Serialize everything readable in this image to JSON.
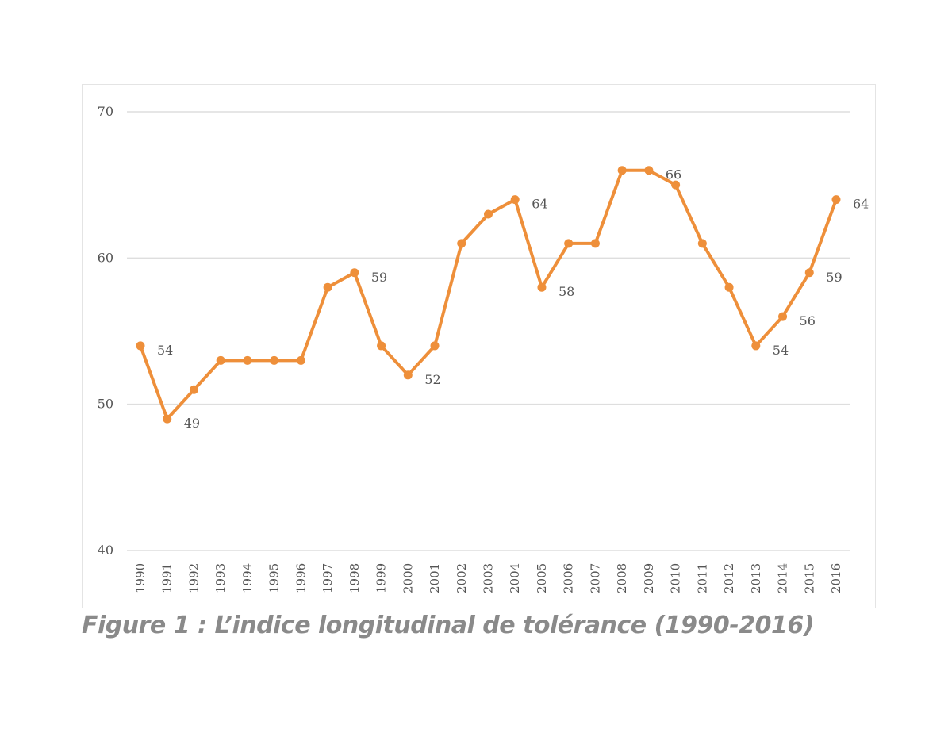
{
  "caption": "Figure 1 : L’indice longitudinal de tolérance (1990-2016)",
  "colors": {
    "line": "#ee8f3a",
    "grid": "#dedede",
    "text": "#555555"
  },
  "chart_data": {
    "type": "line",
    "title": "",
    "xlabel": "",
    "ylabel": "",
    "ylim": [
      40,
      70
    ],
    "yticks": [
      40,
      50,
      60,
      70
    ],
    "grid": true,
    "x": [
      "1990",
      "1991",
      "1992",
      "1993",
      "1994",
      "1995",
      "1996",
      "1997",
      "1998",
      "1999",
      "2000",
      "2001",
      "2002",
      "2003",
      "2004",
      "2005",
      "2006",
      "2007",
      "2008",
      "2009",
      "2010",
      "2011",
      "2012",
      "2013",
      "2014",
      "2015",
      "2016"
    ],
    "series": [
      {
        "values": [
          54,
          49,
          51,
          53,
          53,
          53,
          53,
          58,
          59,
          54,
          52,
          54,
          61,
          63,
          64,
          58,
          61,
          61,
          66,
          66,
          65,
          61,
          58,
          54,
          56,
          59,
          64
        ],
        "data_labels": {
          "1990": "54",
          "1991": "49",
          "1998": "59",
          "2000": "52",
          "2004": "64",
          "2005": "58",
          "2009": "66",
          "2013": "54",
          "2014": "56",
          "2015": "59",
          "2016": "64"
        }
      }
    ]
  }
}
